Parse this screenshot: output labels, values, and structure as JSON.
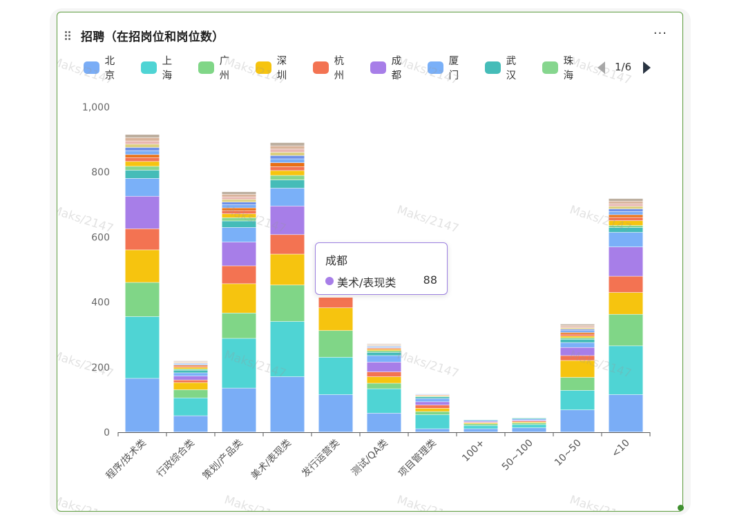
{
  "panel": {
    "title": "招聘（在招岗位和岗位数）",
    "more_label": "···",
    "pagination": "1/6",
    "watermark": "Maks/2147"
  },
  "tooltip": {
    "series": "成都",
    "category": "美术/表现类",
    "value": "88",
    "color": "#a77ee8"
  },
  "chart_data": {
    "type": "bar",
    "stacked": true,
    "categories": [
      "程序/技术类",
      "行政综合类",
      "策划/产品类",
      "美术/表现类",
      "发行运营类",
      "测试/QA类",
      "项目管理类",
      "100+",
      "50~100",
      "10~50",
      "<10"
    ],
    "ylim": [
      0,
      1000
    ],
    "yticks": [
      "0",
      "200",
      "400",
      "600",
      "800",
      "1,000"
    ],
    "grid": false,
    "legend_position": "top",
    "legend": [
      {
        "name": "北京",
        "color": "#7aadf6"
      },
      {
        "name": "上海",
        "color": "#4fd4d4"
      },
      {
        "name": "广州",
        "color": "#80d687"
      },
      {
        "name": "深圳",
        "color": "#f6c40f"
      },
      {
        "name": "杭州",
        "color": "#f37352"
      },
      {
        "name": "成都",
        "color": "#a77ee8"
      },
      {
        "name": "厦门",
        "color": "#7ab0f8"
      },
      {
        "name": "武汉",
        "color": "#45bcb8"
      },
      {
        "name": "珠海",
        "color": "#86d68e"
      }
    ],
    "series": [
      {
        "name": "北京",
        "color": "#7aadf6",
        "values": [
          165,
          50,
          135,
          170,
          115,
          58,
          10,
          10,
          13,
          68,
          115
        ]
      },
      {
        "name": "上海",
        "color": "#4fd4d4",
        "values": [
          190,
          55,
          153,
          170,
          115,
          75,
          43,
          10,
          10,
          60,
          150
        ]
      },
      {
        "name": "广州",
        "color": "#80d687",
        "values": [
          105,
          25,
          78,
          112,
          82,
          17,
          10,
          5,
          5,
          40,
          97
        ]
      },
      {
        "name": "深圳",
        "color": "#f6c40f",
        "values": [
          100,
          22,
          90,
          95,
          70,
          20,
          10,
          3,
          3,
          52,
          67
        ]
      },
      {
        "name": "杭州",
        "color": "#f37352",
        "values": [
          65,
          8,
          55,
          60,
          32,
          15,
          10,
          2,
          3,
          15,
          50
        ]
      },
      {
        "name": "成都",
        "color": "#a77ee8",
        "values": [
          100,
          12,
          73,
          88,
          0,
          30,
          10,
          3,
          3,
          25,
          90
        ]
      },
      {
        "name": "厦门",
        "color": "#7ab0f8",
        "values": [
          55,
          10,
          45,
          55,
          0,
          20,
          10,
          3,
          3,
          15,
          45
        ]
      },
      {
        "name": "武汉",
        "color": "#45bcb8",
        "values": [
          25,
          8,
          20,
          25,
          0,
          10,
          5,
          2,
          3,
          10,
          15
        ]
      },
      {
        "name": "珠海",
        "color": "#86d68e",
        "values": [
          12,
          4,
          10,
          14,
          0,
          5,
          2,
          1,
          1,
          5,
          6
        ]
      },
      {
        "name": "",
        "color": "#f6c40f",
        "values": [
          15,
          5,
          12,
          15,
          0,
          4,
          2,
          1,
          1,
          5,
          15
        ]
      },
      {
        "name": "",
        "color": "#f37352",
        "values": [
          12,
          4,
          10,
          12,
          0,
          3,
          2,
          1,
          1,
          6,
          10
        ]
      },
      {
        "name": "",
        "color": "#e86f14",
        "values": [
          9,
          3,
          8,
          12,
          0,
          2,
          1,
          1,
          1,
          5,
          8
        ]
      },
      {
        "name": "",
        "color": "#7aadf6",
        "values": [
          12,
          3,
          10,
          12,
          0,
          3,
          2,
          1,
          1,
          6,
          10
        ]
      },
      {
        "name": "",
        "color": "#6e90e8",
        "values": [
          10,
          2,
          8,
          10,
          0,
          2,
          1,
          1,
          1,
          4,
          8
        ]
      },
      {
        "name": "",
        "color": "#dccf7e",
        "values": [
          10,
          2,
          8,
          10,
          0,
          2,
          1,
          1,
          1,
          4,
          8
        ]
      },
      {
        "name": "",
        "color": "#e8b7b0",
        "values": [
          10,
          2,
          8,
          10,
          0,
          2,
          1,
          1,
          1,
          4,
          8
        ]
      },
      {
        "name": "",
        "color": "#d9b39a",
        "values": [
          10,
          2,
          8,
          10,
          0,
          2,
          1,
          1,
          1,
          4,
          8
        ]
      },
      {
        "name": "",
        "color": "#bcae9e",
        "values": [
          10,
          2,
          8,
          10,
          0,
          2,
          1,
          1,
          1,
          4,
          8
        ]
      }
    ]
  }
}
